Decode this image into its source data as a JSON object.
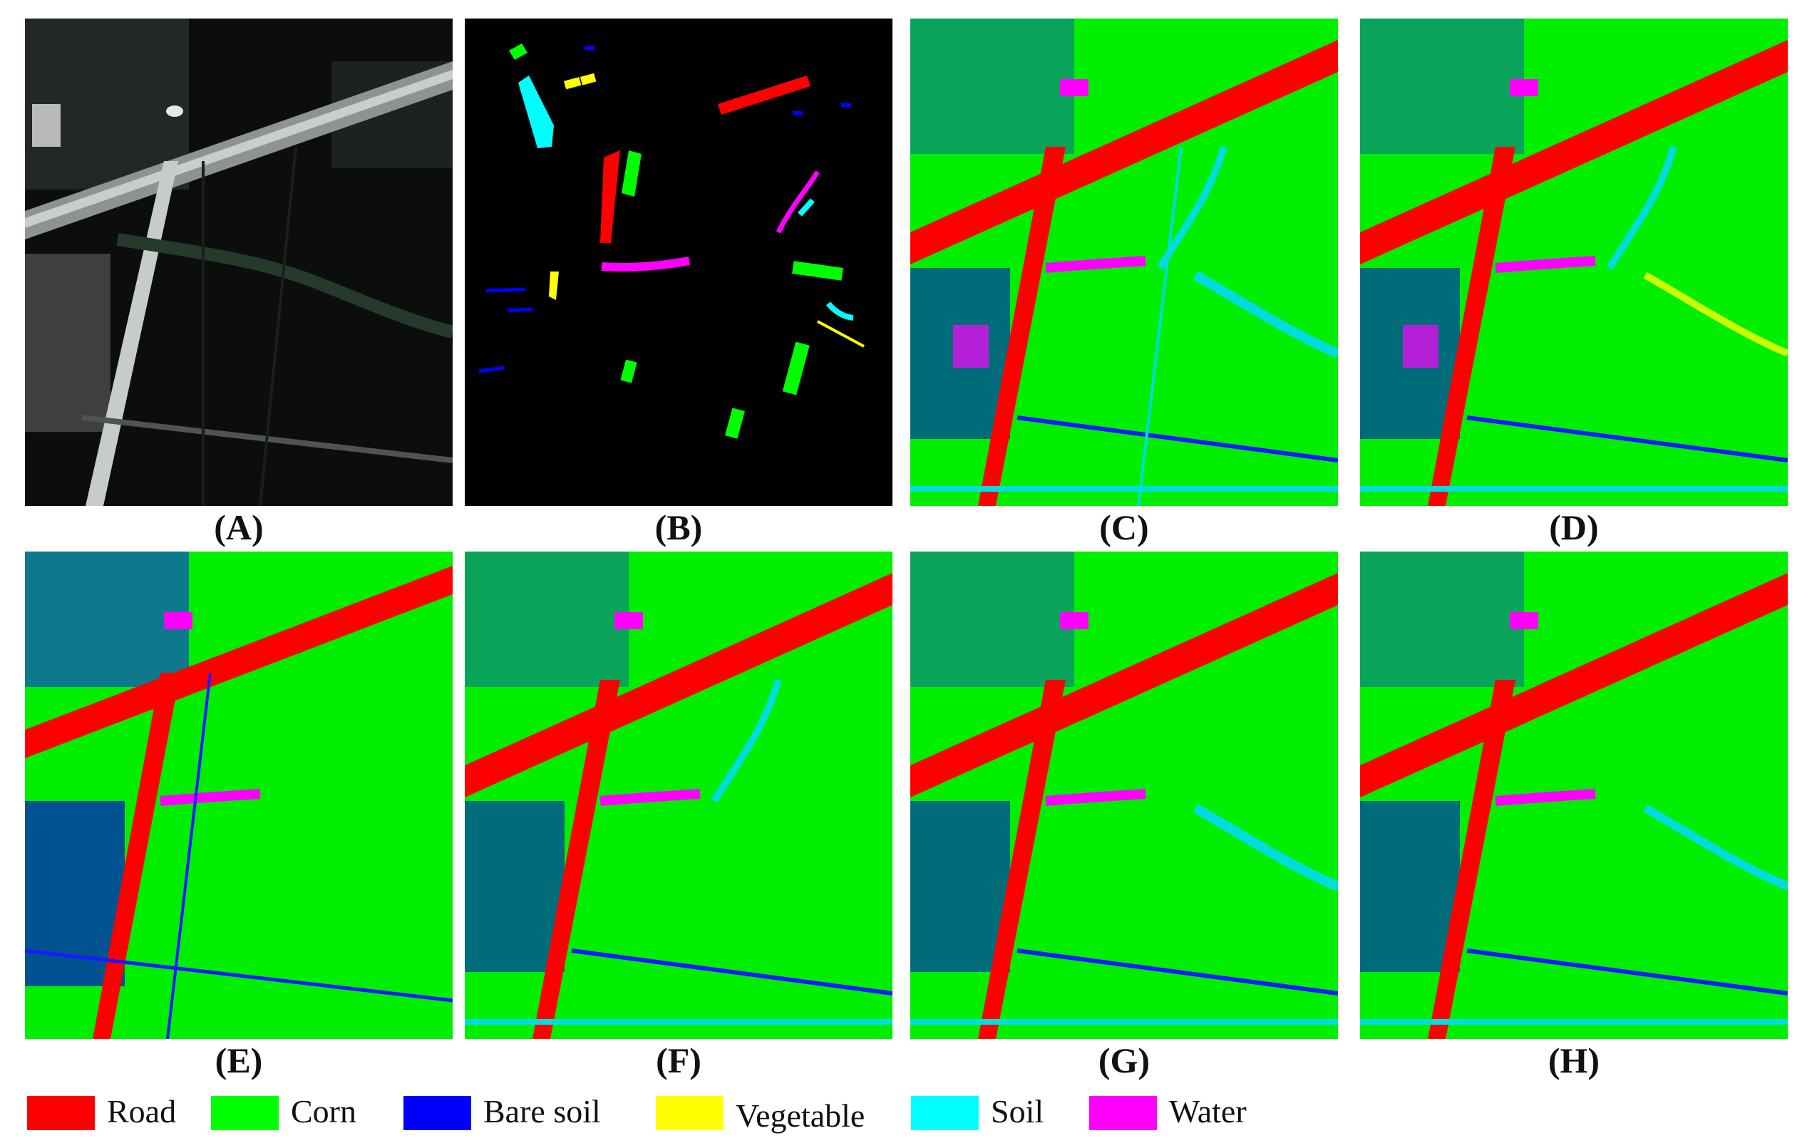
{
  "panels": [
    {
      "id": "A",
      "caption": "(A)",
      "kind": "satellite"
    },
    {
      "id": "B",
      "caption": "(B)",
      "kind": "ground-truth"
    },
    {
      "id": "C",
      "caption": "(C)",
      "kind": "classification"
    },
    {
      "id": "D",
      "caption": "(D)",
      "kind": "classification"
    },
    {
      "id": "E",
      "caption": "(E)",
      "kind": "classification"
    },
    {
      "id": "F",
      "caption": "(F)",
      "kind": "classification"
    },
    {
      "id": "G",
      "caption": "(G)",
      "kind": "classification"
    },
    {
      "id": "H",
      "caption": "(H)",
      "kind": "classification"
    }
  ],
  "legend": [
    {
      "label": "Road",
      "color": "#ff0000"
    },
    {
      "label": "Corn",
      "color": "#00ff00"
    },
    {
      "label": "Bare soil",
      "color": "#0000ff"
    },
    {
      "label": "Vegetable",
      "color": "#ffff00"
    },
    {
      "label": "Soil",
      "color": "#00ffff"
    },
    {
      "label": "Water",
      "color": "#ff00ff"
    }
  ]
}
